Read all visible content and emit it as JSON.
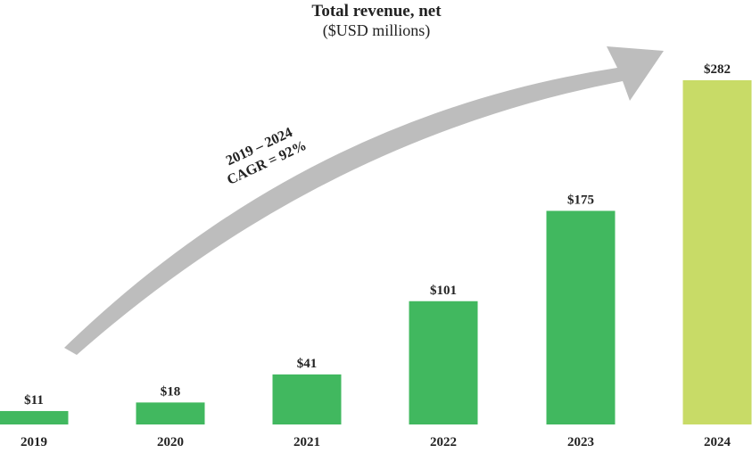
{
  "chart_data": {
    "type": "bar",
    "title": "Total revenue, net",
    "subtitle": "($USD millions)",
    "categories": [
      "2019",
      "2020",
      "2021",
      "2022",
      "2023",
      "2024"
    ],
    "values": [
      11,
      18,
      41,
      101,
      175,
      282
    ],
    "data_labels": [
      "$11",
      "$18",
      "$41",
      "$101",
      "$175",
      "$282"
    ],
    "bar_colors": [
      "#41b85f",
      "#41b85f",
      "#41b85f",
      "#41b85f",
      "#41b85f",
      "#c8db67"
    ],
    "ylim": [
      0,
      282
    ],
    "grid": false,
    "annotation": {
      "line1": "2019 – 2024",
      "line2": "CAGR = 92%",
      "arrow_color": "#bdbdbd"
    }
  }
}
